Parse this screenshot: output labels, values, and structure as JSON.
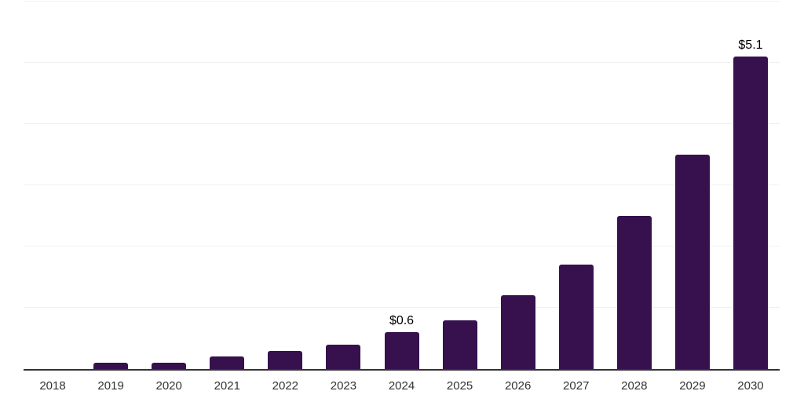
{
  "page": {
    "background": "#ffffff"
  },
  "chart_data": {
    "type": "bar",
    "title": "",
    "xlabel": "",
    "ylabel": "",
    "categories": [
      "2018",
      "2019",
      "2020",
      "2021",
      "2022",
      "2023",
      "2024",
      "2025",
      "2026",
      "2027",
      "2028",
      "2029",
      "2030"
    ],
    "values": [
      0.0,
      0.1,
      0.1,
      0.2,
      0.3,
      0.4,
      0.6,
      0.8,
      1.2,
      1.7,
      2.5,
      3.5,
      5.1
    ],
    "value_labels": [
      "",
      "",
      "",
      "",
      "",
      "",
      "$0.6",
      "",
      "",
      "",
      "",
      "",
      "$5.1"
    ],
    "ylim": [
      0,
      6
    ],
    "gridline_step": 1,
    "grid": true,
    "legend_position": "none",
    "colors": {
      "bar": "#36114E",
      "axis": "#333333",
      "gridline": "#f0f0f0",
      "tick_labels": "#333333",
      "value_labels": "#000000",
      "background": "#ffffff"
    }
  }
}
